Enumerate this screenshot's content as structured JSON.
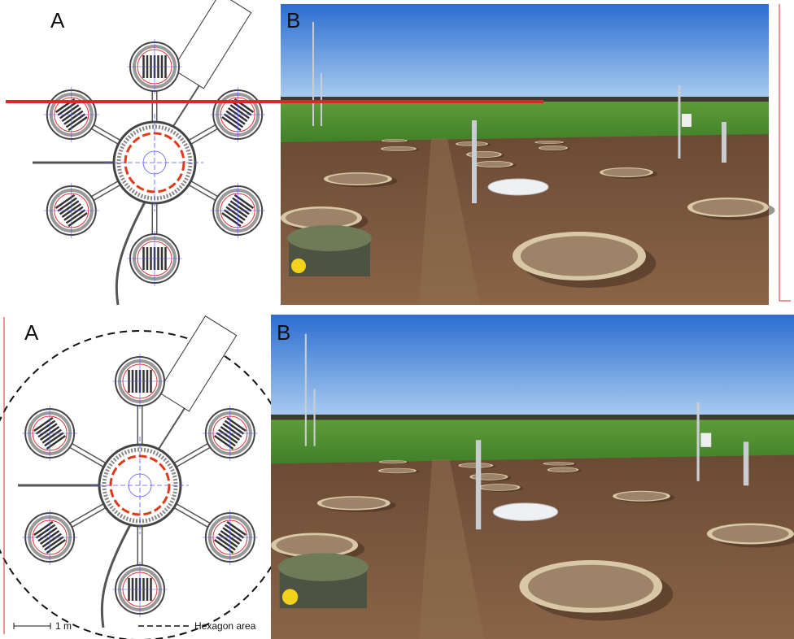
{
  "top": {
    "panel_a_label": "A",
    "panel_b_label": "B"
  },
  "bottom": {
    "panel_a_label": "A",
    "panel_b_label": "B",
    "scale_label": "1 m",
    "legend_label": "Hexagon area"
  }
}
